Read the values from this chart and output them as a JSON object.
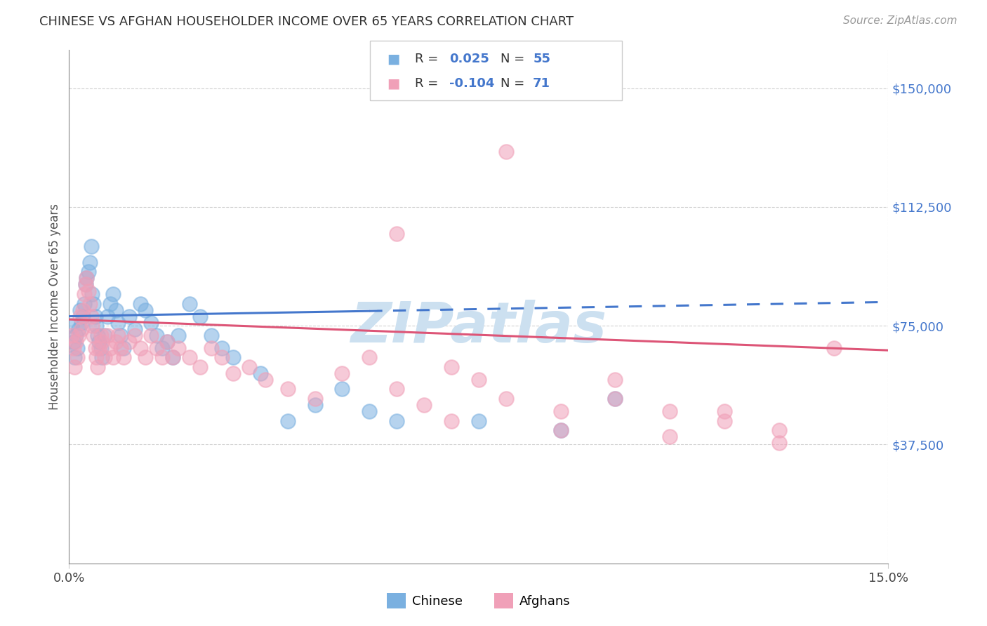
{
  "title": "CHINESE VS AFGHAN HOUSEHOLDER INCOME OVER 65 YEARS CORRELATION CHART",
  "source": "Source: ZipAtlas.com",
  "ylabel": "Householder Income Over 65 years",
  "xlim": [
    0.0,
    15.0
  ],
  "ylim": [
    0,
    162000
  ],
  "yticks": [
    37500,
    75000,
    112500,
    150000
  ],
  "ytick_labels": [
    "$37,500",
    "$75,000",
    "$112,500",
    "$150,000"
  ],
  "chinese_R": "0.025",
  "chinese_N": "55",
  "afghan_R": "-0.104",
  "afghan_N": "71",
  "blue_marker": "#7ab0e0",
  "pink_marker": "#f0a0b8",
  "line_blue": "#4477cc",
  "line_pink": "#dd5577",
  "watermark_color": "#cce0f0",
  "title_color": "#333333",
  "source_color": "#999999",
  "tick_color": "#4477cc",
  "legend_text_dark": "#333333",
  "legend_val_color": "#4477cc",
  "chinese_x": [
    0.05,
    0.08,
    0.1,
    0.12,
    0.15,
    0.18,
    0.2,
    0.22,
    0.25,
    0.28,
    0.3,
    0.32,
    0.35,
    0.38,
    0.4,
    0.42,
    0.45,
    0.48,
    0.5,
    0.52,
    0.55,
    0.58,
    0.6,
    0.65,
    0.7,
    0.75,
    0.8,
    0.85,
    0.9,
    0.95,
    1.0,
    1.1,
    1.2,
    1.3,
    1.4,
    1.5,
    1.6,
    1.7,
    1.8,
    1.9,
    2.0,
    2.2,
    2.4,
    2.6,
    2.8,
    3.0,
    3.5,
    4.0,
    4.5,
    5.0,
    5.5,
    6.0,
    7.5,
    9.0,
    10.0
  ],
  "chinese_y": [
    75000,
    70000,
    65000,
    72000,
    68000,
    74000,
    80000,
    76000,
    78000,
    82000,
    88000,
    90000,
    92000,
    95000,
    100000,
    85000,
    82000,
    78000,
    75000,
    72000,
    70000,
    68000,
    65000,
    72000,
    78000,
    82000,
    85000,
    80000,
    76000,
    72000,
    68000,
    78000,
    74000,
    82000,
    80000,
    76000,
    72000,
    68000,
    70000,
    65000,
    72000,
    82000,
    78000,
    72000,
    68000,
    65000,
    60000,
    45000,
    50000,
    55000,
    48000,
    45000,
    45000,
    42000,
    52000
  ],
  "afghan_x": [
    0.05,
    0.08,
    0.1,
    0.12,
    0.15,
    0.18,
    0.2,
    0.22,
    0.25,
    0.28,
    0.3,
    0.32,
    0.35,
    0.38,
    0.4,
    0.42,
    0.45,
    0.48,
    0.5,
    0.52,
    0.55,
    0.58,
    0.6,
    0.65,
    0.7,
    0.75,
    0.8,
    0.85,
    0.9,
    0.95,
    1.0,
    1.1,
    1.2,
    1.3,
    1.4,
    1.5,
    1.6,
    1.7,
    1.8,
    1.9,
    2.0,
    2.2,
    2.4,
    2.6,
    2.8,
    3.0,
    3.3,
    3.6,
    4.0,
    4.5,
    5.0,
    5.5,
    6.0,
    6.5,
    7.0,
    7.5,
    8.0,
    9.0,
    10.0,
    11.0,
    12.0,
    13.0,
    14.0,
    6.0,
    8.0,
    10.0,
    12.0,
    7.0,
    9.0,
    11.0,
    13.0
  ],
  "afghan_y": [
    72000,
    68000,
    62000,
    70000,
    65000,
    72000,
    78000,
    74000,
    80000,
    85000,
    88000,
    90000,
    86000,
    82000,
    78000,
    75000,
    72000,
    68000,
    65000,
    62000,
    68000,
    72000,
    70000,
    65000,
    72000,
    68000,
    65000,
    70000,
    72000,
    68000,
    65000,
    70000,
    72000,
    68000,
    65000,
    72000,
    68000,
    65000,
    70000,
    65000,
    68000,
    65000,
    62000,
    68000,
    65000,
    60000,
    62000,
    58000,
    55000,
    52000,
    60000,
    65000,
    55000,
    50000,
    62000,
    58000,
    52000,
    48000,
    58000,
    48000,
    45000,
    42000,
    68000,
    104000,
    130000,
    52000,
    48000,
    45000,
    42000,
    40000,
    38000
  ],
  "blue_trend_intercept": 78000,
  "blue_trend_slope": 300,
  "blue_solid_end": 5.5,
  "pink_trend_intercept": 77000,
  "pink_trend_slope": -650
}
